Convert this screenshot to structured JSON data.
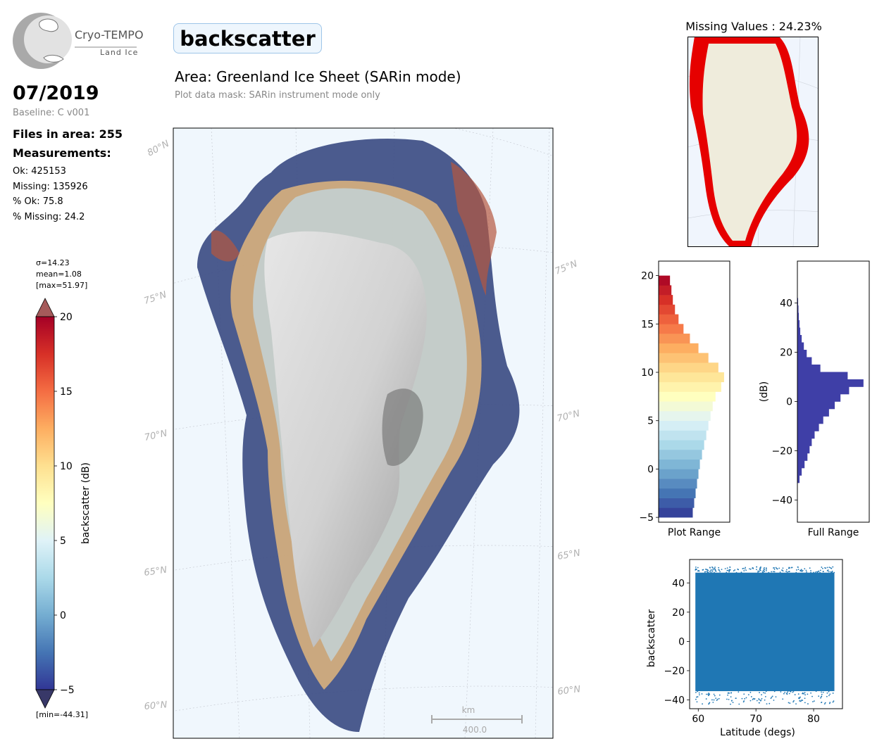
{
  "logo": {
    "name": "Cryo-TEMPO",
    "product": "Land Ice"
  },
  "period": "07/2019",
  "baseline": "Baseline: C v001",
  "files_in_area": "Files in area: 255",
  "measurements_heading": "Measurements:",
  "stats": {
    "ok": "Ok: 425153",
    "missing": "Missing: 135926",
    "pct_ok": "% Ok: 75.8",
    "pct_missing": "% Missing: 24.2"
  },
  "parameter": "backscatter",
  "area": "Area: Greenland Ice Sheet (SARin mode)",
  "mask": "Plot data mask: SARin instrument mode only",
  "colorbar": {
    "sigma": "σ=14.23",
    "mean": "mean=1.08",
    "max": "[max=51.97]",
    "min": "[min=-44.31]",
    "label": "backscatter (dB)",
    "ticks": [
      "20",
      "15",
      "10",
      "5",
      "0",
      "−5"
    ],
    "range": [
      -5,
      20
    ],
    "colors": [
      "#313695",
      "#4575b4",
      "#74add1",
      "#abd9e9",
      "#e0f3f8",
      "#ffffbf",
      "#fee090",
      "#fdae61",
      "#f46d43",
      "#d73027",
      "#a50026"
    ],
    "extend": "both"
  },
  "map": {
    "lat_labels_left": [
      "80°N",
      "75°N",
      "70°N",
      "65°N",
      "60°N"
    ],
    "lat_labels_right": [
      "75°N",
      "70°N",
      "65°N",
      "60°N"
    ],
    "scalebar_unit": "km",
    "scalebar_value": "400.0",
    "ocean_color": "#f0f7fd"
  },
  "missing_map": {
    "title": "Missing Values : 24.23%",
    "marker_color": "#e60000",
    "land_color": "#efecdc"
  },
  "chart_data": [
    {
      "type": "histogram",
      "name": "plot_range",
      "xlabel": "Plot Range",
      "ylim": [
        -5.5,
        21.5
      ],
      "yticks": [
        -5,
        0,
        5,
        10,
        15,
        20
      ],
      "bins": [
        [
          -5,
          0.48
        ],
        [
          -4,
          0.5
        ],
        [
          -3,
          0.52
        ],
        [
          -2,
          0.54
        ],
        [
          -1,
          0.56
        ],
        [
          0,
          0.58
        ],
        [
          1,
          0.61
        ],
        [
          2,
          0.64
        ],
        [
          3,
          0.67
        ],
        [
          4,
          0.7
        ],
        [
          5,
          0.73
        ],
        [
          6,
          0.76
        ],
        [
          7,
          0.8
        ],
        [
          8,
          0.88
        ],
        [
          9,
          0.92
        ],
        [
          10,
          0.84
        ],
        [
          11,
          0.7
        ],
        [
          12,
          0.56
        ],
        [
          13,
          0.44
        ],
        [
          14,
          0.35
        ],
        [
          15,
          0.28
        ],
        [
          16,
          0.23
        ],
        [
          17,
          0.2
        ],
        [
          18,
          0.18
        ],
        [
          19,
          0.16
        ]
      ]
    },
    {
      "type": "histogram",
      "name": "full_range",
      "xlabel": "Full Range",
      "ylabel": "(dB)",
      "ylim": [
        -49,
        57
      ],
      "yticks": [
        -40,
        -20,
        0,
        20,
        40
      ],
      "color": "#3f3fa7",
      "bins": [
        [
          -33,
          0.03
        ],
        [
          -30,
          0.06
        ],
        [
          -27,
          0.1
        ],
        [
          -24,
          0.14
        ],
        [
          -21,
          0.17
        ],
        [
          -18,
          0.2
        ],
        [
          -15,
          0.24
        ],
        [
          -12,
          0.3
        ],
        [
          -9,
          0.36
        ],
        [
          -6,
          0.44
        ],
        [
          -3,
          0.52
        ],
        [
          0,
          0.6
        ],
        [
          3,
          0.72
        ],
        [
          6,
          0.92
        ],
        [
          9,
          0.7
        ],
        [
          12,
          0.32
        ],
        [
          15,
          0.2
        ],
        [
          18,
          0.13
        ],
        [
          21,
          0.09
        ],
        [
          24,
          0.06
        ],
        [
          27,
          0.04
        ],
        [
          30,
          0.03
        ],
        [
          33,
          0.02
        ],
        [
          36,
          0.015
        ],
        [
          39,
          0.01
        ]
      ]
    },
    {
      "type": "scatter",
      "name": "lat_scatter",
      "xlabel": "Latitude (degs)",
      "ylabel": "backscatter",
      "xlim": [
        58.5,
        85
      ],
      "ylim": [
        -46,
        56
      ],
      "xticks": [
        60,
        70,
        80
      ],
      "yticks": [
        -40,
        -20,
        0,
        20,
        40
      ],
      "color": "#1f77b4",
      "x_range": [
        59.5,
        83.6
      ],
      "band": [
        -34,
        47
      ]
    }
  ]
}
